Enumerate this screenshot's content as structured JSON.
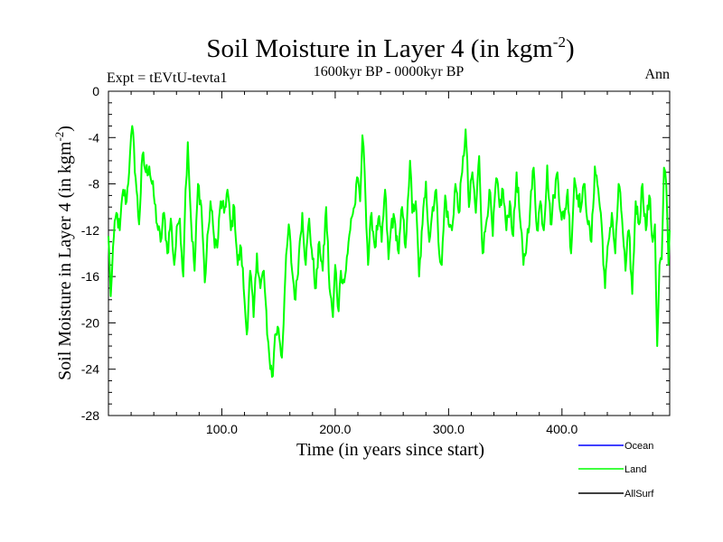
{
  "chart_data": {
    "type": "line",
    "title_main": "Soil Moisture in Layer 4 (in kgm",
    "title_sup": "-2",
    "title_close": ")",
    "subtitle": "1600kyr BP - 0000kyr BP",
    "left_label": "Expt = tEVtU-tevta1",
    "right_label": "Ann",
    "xlabel": "Time (in years since start)",
    "ylabel_main": "Soil Moisture in Layer 4 (in kgm",
    "ylabel_sup": "-2",
    "ylabel_close": ")",
    "xlim": [
      0,
      495
    ],
    "ylim": [
      -28,
      0
    ],
    "xticks": [
      100,
      200,
      300,
      400
    ],
    "xtick_labels": [
      "100.0",
      "200.0",
      "300.0",
      "400.0"
    ],
    "yticks": [
      0,
      -4,
      -8,
      -12,
      -16,
      -20,
      -24,
      -28
    ],
    "ytick_labels": [
      "0",
      "-4",
      "-8",
      "-12",
      "-16",
      "-20",
      "-24",
      "-28"
    ],
    "legend": [
      {
        "name": "Ocean",
        "color": "#0000ff"
      },
      {
        "name": "Land",
        "color": "#00ff00"
      },
      {
        "name": "AllSurf",
        "color": "#000000"
      }
    ],
    "series": [
      {
        "name": "Land",
        "color": "#00ff00",
        "anchors": [
          [
            0,
            -12.5
          ],
          [
            2,
            -17.7
          ],
          [
            4,
            -13.5
          ],
          [
            7,
            -10.5
          ],
          [
            10,
            -12
          ],
          [
            13,
            -8.5
          ],
          [
            16,
            -9.5
          ],
          [
            19,
            -5.5
          ],
          [
            21,
            -3
          ],
          [
            24,
            -7.5
          ],
          [
            27,
            -11.5
          ],
          [
            30,
            -5.5
          ],
          [
            33,
            -7
          ],
          [
            36,
            -6.5
          ],
          [
            40,
            -9
          ],
          [
            43,
            -11.5
          ],
          [
            46,
            -13
          ],
          [
            49,
            -10.5
          ],
          [
            52,
            -14
          ],
          [
            55,
            -11
          ],
          [
            58,
            -15
          ],
          [
            61,
            -11.5
          ],
          [
            63,
            -11
          ],
          [
            66,
            -16
          ],
          [
            68,
            -8.5
          ],
          [
            70,
            -4.4
          ],
          [
            73,
            -11.5
          ],
          [
            76,
            -15.5
          ],
          [
            79,
            -8
          ],
          [
            82,
            -10
          ],
          [
            85,
            -16.5
          ],
          [
            88,
            -12
          ],
          [
            90,
            -9.5
          ],
          [
            93,
            -12.5
          ],
          [
            96,
            -13.5
          ],
          [
            99,
            -9.5
          ],
          [
            102,
            -10.5
          ],
          [
            105,
            -8.5
          ],
          [
            108,
            -12
          ],
          [
            111,
            -10
          ],
          [
            114,
            -15
          ],
          [
            117,
            -13.5
          ],
          [
            120,
            -18
          ],
          [
            122,
            -21
          ],
          [
            125,
            -15.5
          ],
          [
            128,
            -19.5
          ],
          [
            131,
            -14
          ],
          [
            134,
            -17
          ],
          [
            137,
            -15.5
          ],
          [
            140,
            -21
          ],
          [
            142,
            -23
          ],
          [
            145,
            -24.6
          ],
          [
            147,
            -21
          ],
          [
            150,
            -20.5
          ],
          [
            153,
            -23
          ],
          [
            156,
            -16
          ],
          [
            159,
            -11.5
          ],
          [
            162,
            -15.5
          ],
          [
            165,
            -18
          ],
          [
            168,
            -14
          ],
          [
            171,
            -10.5
          ],
          [
            174,
            -15
          ],
          [
            177,
            -11
          ],
          [
            180,
            -14.5
          ],
          [
            183,
            -17
          ],
          [
            186,
            -13
          ],
          [
            189,
            -15.5
          ],
          [
            192,
            -10
          ],
          [
            195,
            -17
          ],
          [
            198,
            -19.5
          ],
          [
            200,
            -15
          ],
          [
            203,
            -19
          ],
          [
            205,
            -15.5
          ],
          [
            208,
            -16.5
          ],
          [
            211,
            -14
          ],
          [
            214,
            -11
          ],
          [
            217,
            -10
          ],
          [
            220,
            -7.5
          ],
          [
            222,
            -9.5
          ],
          [
            224,
            -3.8
          ],
          [
            226,
            -7
          ],
          [
            229,
            -15
          ],
          [
            232,
            -10.5
          ],
          [
            235,
            -13.5
          ],
          [
            238,
            -11
          ],
          [
            241,
            -13
          ],
          [
            244,
            -8.5
          ],
          [
            247,
            -14.5
          ],
          [
            250,
            -11
          ],
          [
            253,
            -11.5
          ],
          [
            256,
            -14
          ],
          [
            259,
            -10
          ],
          [
            262,
            -13.5
          ],
          [
            264,
            -9.5
          ],
          [
            266,
            -6
          ],
          [
            268,
            -10.5
          ],
          [
            271,
            -9.5
          ],
          [
            274,
            -16
          ],
          [
            277,
            -11.5
          ],
          [
            280,
            -7.8
          ],
          [
            283,
            -13
          ],
          [
            286,
            -10
          ],
          [
            289,
            -8.5
          ],
          [
            291,
            -13
          ],
          [
            294,
            -15
          ],
          [
            297,
            -9
          ],
          [
            300,
            -11.5
          ],
          [
            303,
            -12
          ],
          [
            306,
            -8
          ],
          [
            309,
            -10.5
          ],
          [
            312,
            -7
          ],
          [
            315,
            -3.3
          ],
          [
            318,
            -10
          ],
          [
            321,
            -7
          ],
          [
            324,
            -10.5
          ],
          [
            327,
            -5.6
          ],
          [
            330,
            -14
          ],
          [
            333,
            -11.5
          ],
          [
            336,
            -8.5
          ],
          [
            339,
            -12.5
          ],
          [
            342,
            -7.5
          ],
          [
            345,
            -10
          ],
          [
            348,
            -8.5
          ],
          [
            351,
            -12
          ],
          [
            354,
            -9.5
          ],
          [
            357,
            -12.5
          ],
          [
            360,
            -7
          ],
          [
            363,
            -11
          ],
          [
            366,
            -15
          ],
          [
            369,
            -13
          ],
          [
            372,
            -10
          ],
          [
            375,
            -6.6
          ],
          [
            378,
            -12
          ],
          [
            381,
            -9.5
          ],
          [
            384,
            -12
          ],
          [
            387,
            -6.4
          ],
          [
            390,
            -11.5
          ],
          [
            393,
            -9
          ],
          [
            396,
            -7
          ],
          [
            399,
            -10.5
          ],
          [
            402,
            -11
          ],
          [
            405,
            -8.5
          ],
          [
            408,
            -14
          ],
          [
            411,
            -7.5
          ],
          [
            414,
            -9
          ],
          [
            417,
            -10
          ],
          [
            420,
            -8
          ],
          [
            423,
            -11.5
          ],
          [
            426,
            -13
          ],
          [
            429,
            -6.5
          ],
          [
            432,
            -8.5
          ],
          [
            435,
            -11.5
          ],
          [
            438,
            -17
          ],
          [
            441,
            -13
          ],
          [
            444,
            -10.5
          ],
          [
            447,
            -14
          ],
          [
            450,
            -8
          ],
          [
            453,
            -11
          ],
          [
            456,
            -15.5
          ],
          [
            459,
            -12
          ],
          [
            462,
            -17.5
          ],
          [
            465,
            -9.5
          ],
          [
            468,
            -11.5
          ],
          [
            471,
            -8
          ],
          [
            474,
            -12
          ],
          [
            477,
            -9
          ],
          [
            480,
            -13
          ],
          [
            482,
            -11.5
          ],
          [
            484,
            -22
          ],
          [
            486,
            -15
          ],
          [
            488,
            -14.5
          ],
          [
            490,
            -6.6
          ],
          [
            492,
            -8
          ],
          [
            494,
            -15
          ],
          [
            495,
            -12
          ]
        ]
      }
    ]
  }
}
